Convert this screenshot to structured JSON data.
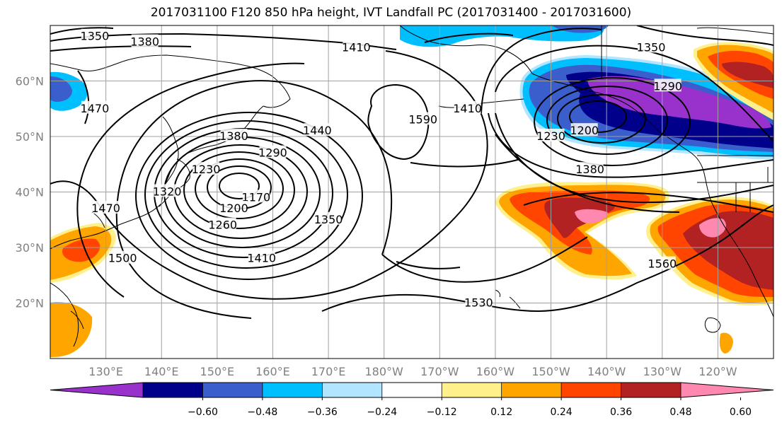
{
  "title": "2017031100 F120 850 hPa height, IVT Landfall PC (2017031400 - 2017031600)",
  "map": {
    "projection": "equirectangular",
    "lon_range": [
      120,
      250
    ],
    "lat_range": [
      10,
      70
    ],
    "lon_ticks": [
      {
        "value": 130,
        "label": "130°E"
      },
      {
        "value": 140,
        "label": "140°E"
      },
      {
        "value": 150,
        "label": "150°E"
      },
      {
        "value": 160,
        "label": "160°E"
      },
      {
        "value": 170,
        "label": "170°E"
      },
      {
        "value": 180,
        "label": "180°W"
      },
      {
        "value": 190,
        "label": "170°W"
      },
      {
        "value": 200,
        "label": "160°W"
      },
      {
        "value": 210,
        "label": "150°W"
      },
      {
        "value": 220,
        "label": "140°W"
      },
      {
        "value": 230,
        "label": "130°W"
      },
      {
        "value": 240,
        "label": "120°W"
      }
    ],
    "lat_ticks": [
      {
        "value": 20,
        "label": "20°N"
      },
      {
        "value": 30,
        "label": "30°N"
      },
      {
        "value": 40,
        "label": "40°N"
      },
      {
        "value": 50,
        "label": "50°N"
      },
      {
        "value": 60,
        "label": "60°N"
      }
    ],
    "gridlines": true,
    "height_contours": {
      "variable": "850 hPa height",
      "interval": 30,
      "low_center": {
        "lon": 152,
        "lat": 41
      },
      "high_center": {
        "lon": 179,
        "lat": 48
      },
      "low_center_2": {
        "lon": 218,
        "lat": 53
      },
      "contour_labels": [
        {
          "text": "1350",
          "lon": 128,
          "lat": 68
        },
        {
          "text": "1380",
          "lon": 137,
          "lat": 67
        },
        {
          "text": "1410",
          "lon": 175,
          "lat": 66
        },
        {
          "text": "1350",
          "lon": 228,
          "lat": 66
        },
        {
          "text": "1470",
          "lon": 128,
          "lat": 55
        },
        {
          "text": "1440",
          "lon": 168,
          "lat": 51
        },
        {
          "text": "1590",
          "lon": 187,
          "lat": 53
        },
        {
          "text": "1410",
          "lon": 195,
          "lat": 55
        },
        {
          "text": "1290",
          "lon": 231,
          "lat": 59
        },
        {
          "text": "1230",
          "lon": 210,
          "lat": 50
        },
        {
          "text": "1200",
          "lon": 216,
          "lat": 51
        },
        {
          "text": "1380",
          "lon": 153,
          "lat": 50
        },
        {
          "text": "1290",
          "lon": 160,
          "lat": 47
        },
        {
          "text": "1230",
          "lon": 148,
          "lat": 44
        },
        {
          "text": "1320",
          "lon": 141,
          "lat": 40
        },
        {
          "text": "1170",
          "lon": 157,
          "lat": 39
        },
        {
          "text": "1200",
          "lon": 153,
          "lat": 37
        },
        {
          "text": "1260",
          "lon": 151,
          "lat": 34
        },
        {
          "text": "1350",
          "lon": 170,
          "lat": 35
        },
        {
          "text": "1380",
          "lon": 217,
          "lat": 44
        },
        {
          "text": "1470",
          "lon": 130,
          "lat": 37
        },
        {
          "text": "1500",
          "lon": 133,
          "lat": 28
        },
        {
          "text": "1410",
          "lon": 158,
          "lat": 28
        },
        {
          "text": "1560",
          "lon": 230,
          "lat": 27
        },
        {
          "text": "1530",
          "lon": 197,
          "lat": 20
        }
      ]
    },
    "ivt_pc_shading": [
      {
        "name": "NE Pacific positive",
        "lon": 207,
        "lat": 34,
        "peak": 0.6
      },
      {
        "name": "US West Coast positive",
        "lon": 238,
        "lat": 32,
        "peak": 0.6
      },
      {
        "name": "NE Pacific negative",
        "lon": 222,
        "lat": 55,
        "peak": -0.6
      },
      {
        "name": "NW corner negative",
        "lon": 121,
        "lat": 59,
        "peak": -0.48
      },
      {
        "name": "Japan/China positive",
        "lon": 126,
        "lat": 30,
        "peak": 0.36
      },
      {
        "name": "Far NE positive",
        "lon": 245,
        "lat": 62,
        "peak": 0.48
      }
    ]
  },
  "colorbar": {
    "extend": "both",
    "levels": [
      -0.72,
      -0.6,
      -0.48,
      -0.36,
      -0.24,
      -0.12,
      0.12,
      0.24,
      0.36,
      0.48,
      0.6,
      0.72
    ],
    "colors": [
      "#9932cc",
      "#00008b",
      "#3a5fcd",
      "#00bfff",
      "#b2e5ff",
      "#ffffff",
      "#fff08c",
      "#ffa500",
      "#ff4500",
      "#b22222",
      "#ff88b0"
    ],
    "tick_labels": [
      "-0.60",
      "-0.48",
      "-0.36",
      "-0.24",
      "-0.12",
      "0.12",
      "0.24",
      "0.36",
      "0.48",
      "0.60"
    ],
    "tick_values": [
      -0.6,
      -0.48,
      -0.36,
      -0.24,
      -0.12,
      0.12,
      0.24,
      0.36,
      0.48,
      0.6
    ]
  }
}
